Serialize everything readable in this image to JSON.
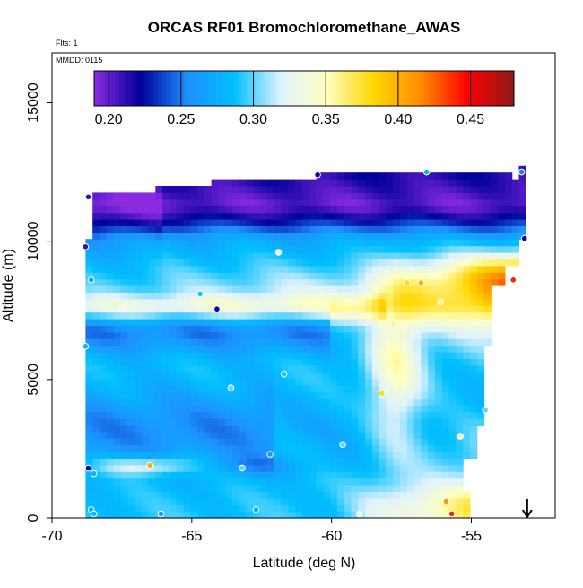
{
  "chart_data": {
    "type": "heatmap",
    "title": "ORCAS RF01 Bromochloromethane_AWAS",
    "annotations": {
      "flights": "Flts: 1",
      "mmdd": "MMDD: 0115"
    },
    "xlabel": "Latitude (deg N)",
    "ylabel": "Altitude (m)",
    "xlim": [
      -70,
      -52
    ],
    "ylim": [
      0,
      16800
    ],
    "x_ticks": [
      -70,
      -65,
      -60,
      -55
    ],
    "x_tick_labels": [
      "-70",
      "-65",
      "-60",
      "-55"
    ],
    "y_ticks": [
      0,
      5000,
      10000,
      15000
    ],
    "y_tick_labels": [
      "0",
      "5000",
      "10000",
      "15000"
    ],
    "colorbar": {
      "range": [
        0.19,
        0.48
      ],
      "ticks": [
        0.2,
        0.25,
        0.3,
        0.35,
        0.4,
        0.45
      ],
      "tick_labels": [
        "0.20",
        "0.25",
        "0.30",
        "0.35",
        "0.40",
        "0.45"
      ],
      "colors": [
        "#8a2be2",
        "#00009a",
        "#1e90ff",
        "#00bfff",
        "#dff2ff",
        "#ffffbf",
        "#ffd700",
        "#ff8c00",
        "#ff0000",
        "#8b1a1a"
      ]
    },
    "field": {
      "x_start": -68.8,
      "x_end": -53.0,
      "x_step": 0.25,
      "y_start": 0,
      "y_end": 12800,
      "y_step": 240,
      "note_values": "gridded interpolated mixing ratio values (approximate reading)"
    },
    "samples": [
      {
        "lat": -68.7,
        "alt": 11600,
        "value": 0.21
      },
      {
        "lat": -68.8,
        "alt": 9800,
        "value": 0.21
      },
      {
        "lat": -68.6,
        "alt": 8600,
        "value": 0.28
      },
      {
        "lat": -67.5,
        "alt": 7550,
        "value": 0.33
      },
      {
        "lat": -64.7,
        "alt": 8100,
        "value": 0.29
      },
      {
        "lat": -64.1,
        "alt": 7550,
        "value": 0.22
      },
      {
        "lat": -61.9,
        "alt": 9600,
        "value": 0.33
      },
      {
        "lat": -60.5,
        "alt": 12400,
        "value": 0.22
      },
      {
        "lat": -56.6,
        "alt": 12500,
        "value": 0.28
      },
      {
        "lat": -53.2,
        "alt": 12500,
        "value": 0.25
      },
      {
        "lat": -53.1,
        "alt": 10100,
        "value": 0.22
      },
      {
        "lat": -57.3,
        "alt": 8500,
        "value": 0.38
      },
      {
        "lat": -56.8,
        "alt": 8500,
        "value": 0.4
      },
      {
        "lat": -53.5,
        "alt": 8600,
        "value": 0.44
      },
      {
        "lat": -56.1,
        "alt": 7800,
        "value": 0.36
      },
      {
        "lat": -57.8,
        "alt": 7000,
        "value": 0.36
      },
      {
        "lat": -68.8,
        "alt": 6200,
        "value": 0.28
      },
      {
        "lat": -61.7,
        "alt": 5200,
        "value": 0.29
      },
      {
        "lat": -63.6,
        "alt": 4700,
        "value": 0.3
      },
      {
        "lat": -58.2,
        "alt": 4500,
        "value": 0.38
      },
      {
        "lat": -54.5,
        "alt": 3900,
        "value": 0.3
      },
      {
        "lat": -55.4,
        "alt": 2950,
        "value": 0.36
      },
      {
        "lat": -59.6,
        "alt": 2650,
        "value": 0.3
      },
      {
        "lat": -62.2,
        "alt": 2300,
        "value": 0.26
      },
      {
        "lat": -66.5,
        "alt": 1900,
        "value": 0.4
      },
      {
        "lat": -68.7,
        "alt": 1800,
        "value": 0.22
      },
      {
        "lat": -63.2,
        "alt": 1800,
        "value": 0.3
      },
      {
        "lat": -68.5,
        "alt": 1600,
        "value": 0.28
      },
      {
        "lat": -55.9,
        "alt": 600,
        "value": 0.41
      },
      {
        "lat": -62.7,
        "alt": 300,
        "value": 0.28
      },
      {
        "lat": -68.6,
        "alt": 300,
        "value": 0.28
      },
      {
        "lat": -66.1,
        "alt": 150,
        "value": 0.26
      },
      {
        "lat": -59.0,
        "alt": 150,
        "value": 0.33
      },
      {
        "lat": -55.7,
        "alt": 150,
        "value": 0.44
      },
      {
        "lat": -68.5,
        "alt": 150,
        "value": 0.28
      }
    ],
    "arrow_marker": {
      "lat": -53.0,
      "direction": "down"
    },
    "grid": false,
    "legend": "colorbar-top"
  }
}
